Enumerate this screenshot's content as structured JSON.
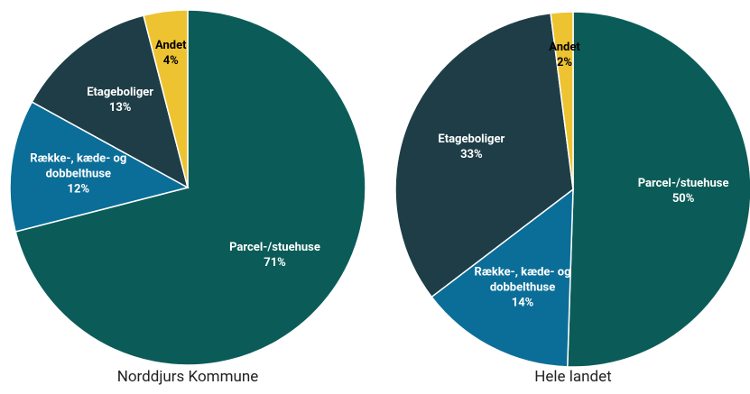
{
  "chart_data": [
    {
      "type": "pie",
      "title": "Norddjurs Kommune",
      "categories": [
        "Parcel-/stuehuse",
        "Række-, kæde- og dobbelthuse",
        "Etageboliger",
        "Andet"
      ],
      "values": [
        71,
        12,
        13,
        4
      ],
      "value_labels": [
        "71%",
        "12%",
        "13%",
        "4%"
      ],
      "colors": [
        "#0b5c58",
        "#0b6e98",
        "#1e3d47",
        "#eec332"
      ]
    },
    {
      "type": "pie",
      "title": "Hele landet",
      "categories": [
        "Parcel-/stuehuse",
        "Række-, kæde- og dobbelthuse",
        "Etageboliger",
        "Andet"
      ],
      "values": [
        50,
        14,
        33,
        2
      ],
      "value_labels": [
        "50%",
        "14%",
        "33%",
        "2%"
      ],
      "colors": [
        "#0b5c58",
        "#0b6e98",
        "#1e3d47",
        "#eec332"
      ]
    }
  ]
}
